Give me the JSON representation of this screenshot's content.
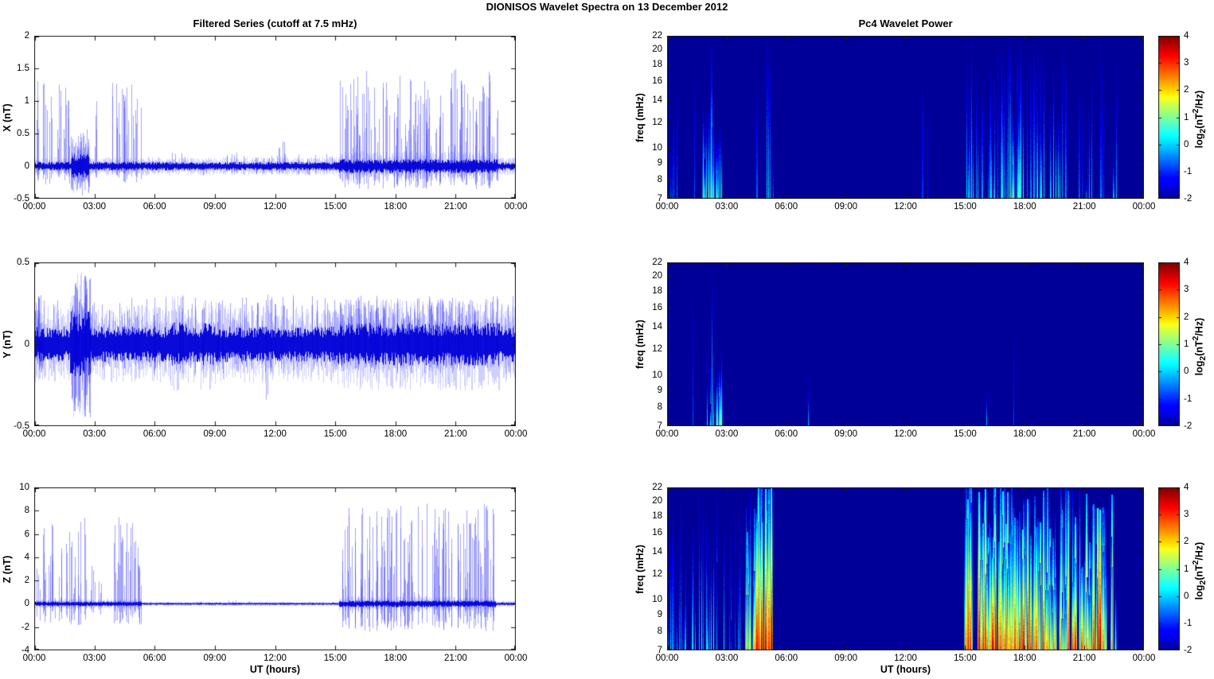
{
  "figure": {
    "title": "DIONISOS Wavelet Spectra on 13 December  2012"
  },
  "columns": {
    "xlabel": "UT (hours)"
  },
  "time_axis": {
    "ticks_hours": [
      0,
      3,
      6,
      9,
      12,
      15,
      18,
      21,
      24
    ],
    "labels": [
      "00:00",
      "03:00",
      "06:00",
      "09:00",
      "12:00",
      "15:00",
      "18:00",
      "21:00",
      "00:00"
    ]
  },
  "colorbar": {
    "min": -2,
    "max": 4,
    "ticks": [
      -2,
      -1,
      0,
      1,
      2,
      3,
      4
    ],
    "colormap": "jet",
    "label_pre": "log",
    "label_sub": "2",
    "label_mid": "(nT",
    "label_sup": "2",
    "label_post": "/Hz)"
  },
  "colors": {
    "line": "#0000e0",
    "power_background": "#000099",
    "axis": "#1a1a1a"
  },
  "chart_data": [
    {
      "id": "x-filtered-series",
      "type": "line",
      "title": "Filtered Series (cutoff at 7.5 mHz)",
      "ylabel": "X (nT)",
      "ylim": [
        -0.5,
        2
      ],
      "yticks": [
        -0.5,
        0,
        0.5,
        1,
        1.5,
        2
      ],
      "xlim_hours": [
        0,
        24
      ],
      "seed": 101,
      "noise_bands": [
        {
          "t0": 0,
          "t1": 24,
          "amp": 0.045
        },
        {
          "t0": 1.85,
          "t1": 2.75,
          "amp": 0.13
        },
        {
          "t0": 15.2,
          "t1": 23.1,
          "amp": 0.075
        }
      ],
      "spike_bands": [
        {
          "t0": 0.05,
          "t1": 1.85,
          "n": 26,
          "up": [
            0.25,
            1.32
          ],
          "down": [
            0.05,
            0.28
          ]
        },
        {
          "t0": 1.85,
          "t1": 2.75,
          "n": 28,
          "up": [
            0.1,
            0.62
          ],
          "down": [
            0.1,
            0.45
          ]
        },
        {
          "t0": 2.85,
          "t1": 3.4,
          "n": 4,
          "up": [
            0.2,
            1.15
          ],
          "down": [
            0.05,
            0.2
          ]
        },
        {
          "t0": 3.9,
          "t1": 5.35,
          "n": 26,
          "up": [
            0.35,
            1.3
          ],
          "down": [
            0.05,
            0.25
          ]
        },
        {
          "t0": 5.5,
          "t1": 14.9,
          "n": 34,
          "up": [
            0.05,
            0.22
          ],
          "down": [
            0.03,
            0.14
          ]
        },
        {
          "t0": 11.9,
          "t1": 12.5,
          "n": 4,
          "up": [
            0.25,
            0.42
          ],
          "down": [
            0.05,
            0.15
          ]
        },
        {
          "t0": 15.2,
          "t1": 23.15,
          "n": 150,
          "up": [
            0.2,
            1.5
          ],
          "down": [
            0.05,
            0.35
          ]
        }
      ]
    },
    {
      "id": "y-filtered-series",
      "type": "line",
      "ylabel": "Y (nT)",
      "ylim": [
        -0.5,
        0.5
      ],
      "yticks": [
        -0.5,
        0,
        0.5
      ],
      "xlim_hours": [
        0,
        24
      ],
      "seed": 102,
      "noise_bands": [
        {
          "t0": 0,
          "t1": 24,
          "amp": 0.075
        },
        {
          "t0": 1.8,
          "t1": 2.8,
          "amp": 0.14
        },
        {
          "t0": 6.7,
          "t1": 7.6,
          "amp": 0.095
        },
        {
          "t0": 8.3,
          "t1": 9.2,
          "amp": 0.09
        },
        {
          "t0": 15.0,
          "t1": 23.2,
          "amp": 0.09
        }
      ],
      "spike_bands": [
        {
          "t0": 0.02,
          "t1": 23.9,
          "n": 300,
          "up": [
            0.04,
            0.3
          ],
          "down": [
            0.03,
            0.18
          ]
        },
        {
          "t0": 0.1,
          "t1": 0.6,
          "n": 6,
          "up": [
            0.15,
            0.33
          ],
          "down": [
            0.05,
            0.15
          ]
        },
        {
          "t0": 1.85,
          "t1": 2.8,
          "n": 30,
          "up": [
            0.12,
            0.42
          ],
          "down": [
            0.12,
            0.47
          ]
        },
        {
          "t0": 11.5,
          "t1": 11.65,
          "n": 2,
          "up": [
            0.26,
            0.32
          ],
          "down": [
            0.28,
            0.34
          ]
        },
        {
          "t0": 15.0,
          "t1": 23.0,
          "n": 90,
          "up": [
            0.08,
            0.27
          ],
          "down": [
            0.04,
            0.15
          ]
        }
      ]
    },
    {
      "id": "z-filtered-series",
      "type": "line",
      "ylabel": "Z (nT)",
      "ylim": [
        -4,
        10
      ],
      "yticks": [
        -4,
        -2,
        0,
        2,
        4,
        6,
        8,
        10
      ],
      "xlim_hours": [
        0,
        24
      ],
      "seed": 103,
      "noise_bands": [
        {
          "t0": 0,
          "t1": 5.35,
          "amp": 0.14
        },
        {
          "t0": 5.35,
          "t1": 15.2,
          "amp": 0.06
        },
        {
          "t0": 15.2,
          "t1": 23.0,
          "amp": 0.2
        },
        {
          "t0": 23.0,
          "t1": 24,
          "amp": 0.09
        }
      ],
      "spike_bands": [
        {
          "t0": 0.02,
          "t1": 1.4,
          "n": 22,
          "up": [
            0.5,
            7.6
          ],
          "down": [
            0.2,
            1.6
          ]
        },
        {
          "t0": 1.6,
          "t1": 2.65,
          "n": 18,
          "up": [
            0.5,
            7.4
          ],
          "down": [
            0.3,
            1.9
          ]
        },
        {
          "t0": 2.7,
          "t1": 3.9,
          "n": 7,
          "up": [
            0.3,
            3.6
          ],
          "down": [
            0.2,
            1.2
          ]
        },
        {
          "t0": 3.95,
          "t1": 5.35,
          "n": 28,
          "up": [
            1.5,
            7.5
          ],
          "down": [
            0.3,
            1.8
          ]
        },
        {
          "t0": 5.6,
          "t1": 15.0,
          "n": 10,
          "up": [
            0.08,
            0.3
          ],
          "down": [
            0.05,
            0.2
          ]
        },
        {
          "t0": 15.25,
          "t1": 23.0,
          "n": 150,
          "up": [
            0.5,
            8.7
          ],
          "down": [
            0.3,
            2.4
          ]
        }
      ]
    },
    {
      "id": "x-wavelet-power",
      "type": "heatmap",
      "title": "Pc4 Wavelet Power",
      "ylabel": "freq (mHz)",
      "yscale": "log",
      "ylim": [
        7,
        22
      ],
      "yticks": [
        7,
        8,
        9,
        10,
        12,
        14,
        16,
        18,
        20,
        22
      ],
      "clim": [
        -2,
        4
      ],
      "seed": 104,
      "events": [
        {
          "t0": 0.02,
          "t1": 0.5,
          "n": 4,
          "i": [
            -1.2,
            -0.6
          ],
          "f": [
            8,
            18
          ]
        },
        {
          "t0": 1.25,
          "t1": 1.45,
          "n": 2,
          "i": [
            -0.9,
            -0.4
          ],
          "f": [
            15,
            19
          ]
        },
        {
          "t0": 1.8,
          "t1": 2.45,
          "n": 10,
          "i": [
            0.3,
            1.6
          ],
          "f": [
            9,
            15
          ]
        },
        {
          "t0": 2.15,
          "t1": 2.4,
          "n": 3,
          "i": [
            0.7,
            1.3
          ],
          "f": [
            20,
            22.5
          ]
        },
        {
          "t0": 2.45,
          "t1": 2.8,
          "n": 6,
          "i": [
            0.2,
            1.2
          ],
          "f": [
            9,
            13
          ]
        },
        {
          "t0": 4.5,
          "t1": 4.75,
          "n": 2,
          "i": [
            -1.0,
            -0.5
          ],
          "f": [
            12,
            16
          ]
        },
        {
          "t0": 4.95,
          "t1": 5.2,
          "n": 3,
          "i": [
            -0.4,
            0.3
          ],
          "f": [
            18,
            22.5
          ]
        },
        {
          "t0": 5.25,
          "t1": 5.45,
          "n": 2,
          "i": [
            -0.9,
            -0.4
          ],
          "f": [
            9,
            12
          ]
        },
        {
          "t0": 12.8,
          "t1": 13.4,
          "n": 3,
          "i": [
            -1.3,
            -0.8
          ],
          "f": [
            13,
            17
          ]
        },
        {
          "t0": 15.05,
          "t1": 16.9,
          "n": 24,
          "i": [
            -0.9,
            0.4
          ],
          "f": [
            9,
            22.5
          ]
        },
        {
          "t0": 16.9,
          "t1": 18.2,
          "n": 22,
          "i": [
            -0.6,
            0.9
          ],
          "f": [
            10,
            22.5
          ]
        },
        {
          "t0": 17.35,
          "t1": 17.7,
          "n": 5,
          "i": [
            0.8,
            1.6
          ],
          "f": [
            11,
            16
          ]
        },
        {
          "t0": 18.2,
          "t1": 20.3,
          "n": 22,
          "i": [
            -0.9,
            0.5
          ],
          "f": [
            9,
            22.5
          ]
        },
        {
          "t0": 19.5,
          "t1": 19.85,
          "n": 4,
          "i": [
            0.2,
            0.9
          ],
          "f": [
            9,
            13
          ]
        },
        {
          "t0": 20.3,
          "t1": 22.75,
          "n": 20,
          "i": [
            -1.0,
            0.3
          ],
          "f": [
            8,
            22.5
          ]
        }
      ]
    },
    {
      "id": "y-wavelet-power",
      "type": "heatmap",
      "ylabel": "freq (mHz)",
      "yscale": "log",
      "ylim": [
        7,
        22
      ],
      "yticks": [
        7,
        8,
        9,
        10,
        12,
        14,
        16,
        18,
        20,
        22
      ],
      "clim": [
        -2,
        4
      ],
      "seed": 105,
      "events": [
        {
          "t0": 1.3,
          "t1": 1.45,
          "n": 1,
          "i": [
            -0.8,
            -0.5
          ],
          "f": [
            15,
            18
          ]
        },
        {
          "t0": 1.85,
          "t1": 2.2,
          "n": 6,
          "i": [
            0.1,
            1.0
          ],
          "f": [
            8,
            14
          ]
        },
        {
          "t0": 2.2,
          "t1": 2.35,
          "n": 2,
          "i": [
            0.6,
            1.2
          ],
          "f": [
            21,
            22.5
          ]
        },
        {
          "t0": 2.35,
          "t1": 2.8,
          "n": 7,
          "i": [
            0.3,
            1.5
          ],
          "f": [
            9,
            13
          ]
        },
        {
          "t0": 7.1,
          "t1": 7.35,
          "n": 2,
          "i": [
            -0.2,
            0.5
          ],
          "f": [
            9,
            10.5
          ]
        },
        {
          "t0": 16.05,
          "t1": 16.2,
          "n": 1,
          "i": [
            -0.3,
            0.2
          ],
          "f": [
            8.5,
            9.5
          ]
        },
        {
          "t0": 17.3,
          "t1": 17.5,
          "n": 1,
          "i": [
            -1.2,
            -0.8
          ],
          "f": [
            13,
            15
          ]
        }
      ]
    },
    {
      "id": "z-wavelet-power",
      "type": "heatmap",
      "ylabel": "freq (mHz)",
      "yscale": "log",
      "ylim": [
        7,
        22
      ],
      "yticks": [
        7,
        8,
        9,
        10,
        12,
        14,
        16,
        18,
        20,
        22
      ],
      "clim": [
        -2,
        4
      ],
      "seed": 106,
      "events": [
        {
          "t0": 0.05,
          "t1": 1.45,
          "n": 16,
          "i": [
            -0.8,
            0.6
          ],
          "f": [
            9,
            22.5
          ]
        },
        {
          "t0": 1.6,
          "t1": 2.65,
          "n": 15,
          "i": [
            -0.5,
            0.8
          ],
          "f": [
            9,
            22.5
          ]
        },
        {
          "t0": 2.7,
          "t1": 3.9,
          "n": 8,
          "i": [
            -0.9,
            0.2
          ],
          "f": [
            8,
            20
          ]
        },
        {
          "t0": 3.95,
          "t1": 4.4,
          "n": 12,
          "i": [
            1.5,
            3.2
          ],
          "f": [
            12,
            22.5
          ]
        },
        {
          "t0": 4.4,
          "t1": 5.3,
          "n": 26,
          "i": [
            2.5,
            4.0
          ],
          "f": [
            14,
            22.5
          ]
        },
        {
          "t0": 15.0,
          "t1": 16.6,
          "n": 34,
          "i": [
            2.0,
            4.0
          ],
          "f": [
            12,
            22.5
          ]
        },
        {
          "t0": 16.6,
          "t1": 18.0,
          "n": 32,
          "i": [
            2.2,
            4.0
          ],
          "f": [
            12,
            22.5
          ]
        },
        {
          "t0": 18.0,
          "t1": 20.5,
          "n": 45,
          "i": [
            1.5,
            3.8
          ],
          "f": [
            10,
            22.5
          ]
        },
        {
          "t0": 20.5,
          "t1": 22.45,
          "n": 32,
          "i": [
            1.8,
            4.0
          ],
          "f": [
            11,
            22.5
          ]
        },
        {
          "t0": 22.45,
          "t1": 22.6,
          "n": 3,
          "i": [
            0.5,
            1.5
          ],
          "f": [
            10,
            14
          ]
        }
      ]
    }
  ]
}
